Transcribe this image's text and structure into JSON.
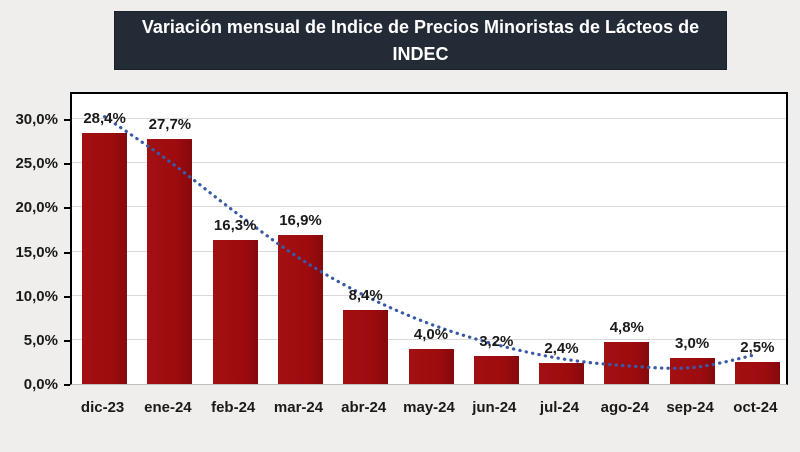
{
  "page": {
    "background": "#EFEEEC"
  },
  "title": {
    "text": "Variación mensual de Indice de Precios Minoristas de Lácteos de INDEC",
    "line1": "Variación mensual de Indice de Precios Minoristas de Lácteos de",
    "line2": "INDEC"
  },
  "colors": {
    "page_bg": "#EFEEEC",
    "title_bg": "#232B37",
    "title_text": "#FFFFFF",
    "bar": "#9E0B0E",
    "trendline": "#3A5AA6",
    "gridline": "#D9D9D9",
    "axis": "#000000",
    "text": "#1A1A1A"
  },
  "chart_data": {
    "type": "bar",
    "title": "Variación mensual de Indice de Precios Minoristas de Lácteos de INDEC",
    "categories": [
      "dic-23",
      "ene-24",
      "feb-24",
      "mar-24",
      "abr-24",
      "may-24",
      "jun-24",
      "jul-24",
      "ago-24",
      "sep-24",
      "oct-24"
    ],
    "values": [
      28.4,
      27.7,
      16.3,
      16.9,
      8.4,
      4.0,
      3.2,
      2.4,
      4.8,
      3.0,
      2.5
    ],
    "value_labels": [
      "28,4%",
      "27,7%",
      "16,3%",
      "16,9%",
      "8,4%",
      "4,0%",
      "3,2%",
      "2,4%",
      "4,8%",
      "3,0%",
      "2,5%"
    ],
    "xlabel": "",
    "ylabel": "",
    "ylim": [
      0,
      33.17
    ],
    "grid": true,
    "legend": "none",
    "yticks": [
      {
        "value": 0,
        "label": "0,0%"
      },
      {
        "value": 5,
        "label": "5,0%"
      },
      {
        "value": 10,
        "label": "10,0%"
      },
      {
        "value": 15,
        "label": "15,0%"
      },
      {
        "value": 20,
        "label": "20,0%"
      },
      {
        "value": 25,
        "label": "25,0%"
      },
      {
        "value": 30,
        "label": "30,0%"
      }
    ],
    "trendline": {
      "style": "dotted",
      "color": "#3A5AA6",
      "values": [
        30.6,
        25.5,
        19.8,
        14.5,
        10.3,
        7.1,
        4.8,
        3.2,
        2.4,
        2.2,
        3.7
      ]
    }
  }
}
